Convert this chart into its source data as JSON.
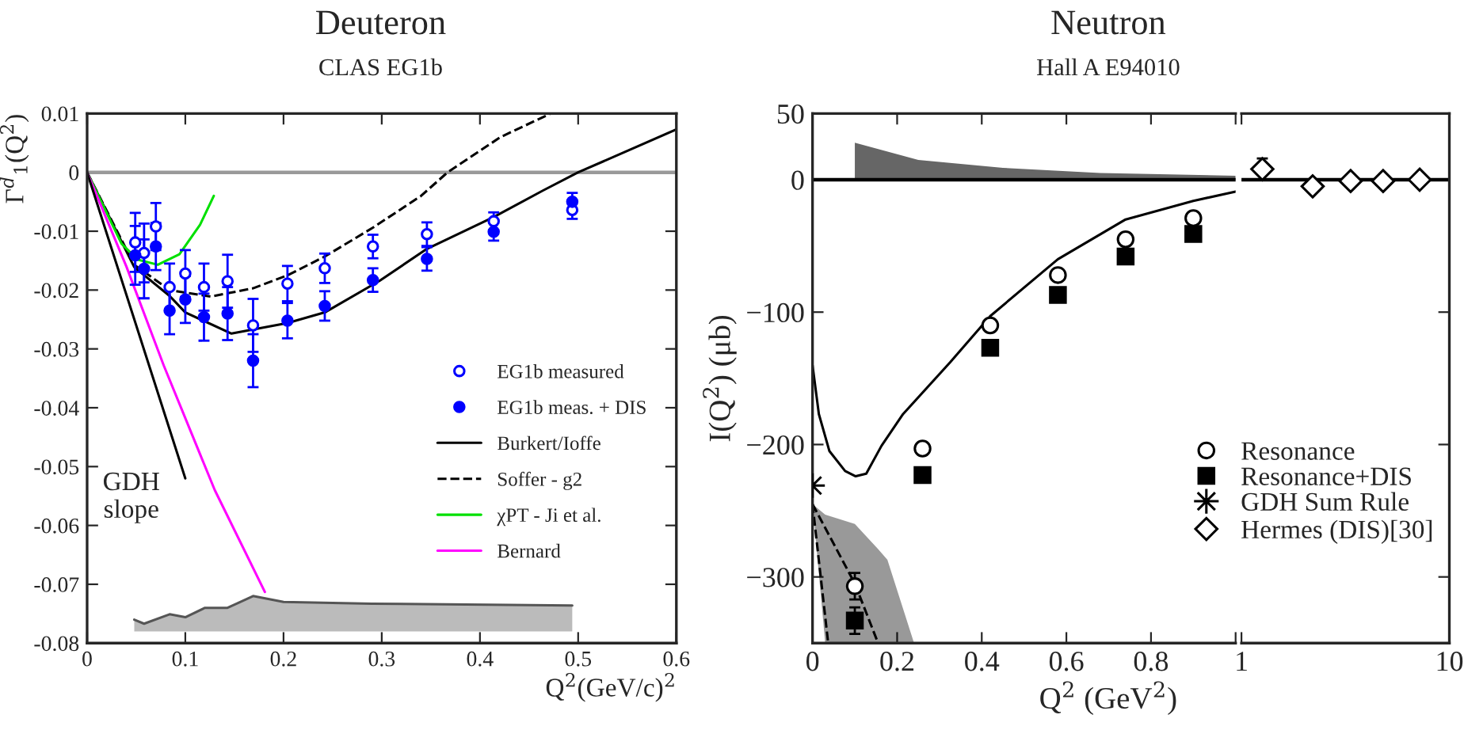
{
  "chart_data": [
    {
      "type": "scatter",
      "title": "Deuteron",
      "subtitle": "CLAS EG1b",
      "xlabel": "Q$^{2}$(GeV/c)$^{2}$",
      "ylabel": "Γ$^{d}$$_{1}$(Q$^{2}$)",
      "xlim": [
        0,
        0.6
      ],
      "xticks": [
        0,
        0.1,
        0.2,
        0.3,
        0.4,
        0.5,
        0.6
      ],
      "ylim": [
        -0.08,
        0.01
      ],
      "yticks": [
        -0.08,
        -0.07,
        -0.06,
        -0.05,
        -0.04,
        -0.03,
        -0.02,
        -0.01,
        0,
        0.01
      ],
      "legend": "bottom right",
      "grid": false,
      "ref_lines": [
        {
          "axis": "y",
          "value": 0,
          "color": "#999999"
        }
      ],
      "annotations": [
        "GDH\nslope"
      ],
      "series": [
        {
          "name": "EG1b measured",
          "color": "#0000ff",
          "marker": "circle-open",
          "x": [
            0.049,
            0.058,
            0.07,
            0.084,
            0.1,
            0.119,
            0.143,
            0.169,
            0.204,
            0.242,
            0.291,
            0.346,
            0.414,
            0.494
          ],
          "values": [
            -0.0119,
            -0.0137,
            -0.0092,
            -0.0195,
            -0.0172,
            -0.0195,
            -0.0185,
            -0.026,
            -0.0189,
            -0.0163,
            -0.0126,
            -0.0105,
            -0.0083,
            -0.0064
          ],
          "errors": [
            0.005,
            0.005,
            0.004,
            0.004,
            0.004,
            0.004,
            0.0045,
            0.0045,
            0.003,
            0.0025,
            0.002,
            0.002,
            0.0015,
            0.0015
          ]
        },
        {
          "name": "EG1b meas. + DIS",
          "color": "#0000ff",
          "marker": "circle",
          "x": [
            0.049,
            0.058,
            0.07,
            0.084,
            0.1,
            0.119,
            0.143,
            0.169,
            0.204,
            0.242,
            0.291,
            0.346,
            0.414,
            0.494
          ],
          "values": [
            -0.0141,
            -0.0164,
            -0.0126,
            -0.0235,
            -0.0216,
            -0.0246,
            -0.024,
            -0.032,
            -0.0252,
            -0.0227,
            -0.0183,
            -0.0147,
            -0.0101,
            -0.005
          ],
          "errors": [
            0.005,
            0.005,
            0.004,
            0.004,
            0.004,
            0.004,
            0.0045,
            0.0045,
            0.003,
            0.0025,
            0.002,
            0.002,
            0.0015,
            0.0015
          ]
        },
        {
          "name": "Burkert/Ioffe",
          "type": "line",
          "color": "#000000",
          "line_style": "solid",
          "x": [
            0,
            0.048,
            0.084,
            0.1,
            0.147,
            0.204,
            0.242,
            0.298,
            0.346,
            0.414,
            0.464,
            0.5,
            0.6
          ],
          "values": [
            0,
            -0.0161,
            -0.021,
            -0.0238,
            -0.0274,
            -0.0256,
            -0.0238,
            -0.0184,
            -0.013,
            -0.0076,
            -0.0031,
            0,
            0.0073
          ]
        },
        {
          "name": "Soffer - g2",
          "type": "line",
          "color": "#000000",
          "line_style": "dashed",
          "x": [
            0,
            0.048,
            0.084,
            0.126,
            0.169,
            0.204,
            0.242,
            0.291,
            0.34,
            0.367,
            0.421,
            0.472
          ],
          "values": [
            0,
            -0.0157,
            -0.02,
            -0.0211,
            -0.0197,
            -0.0175,
            -0.0143,
            -0.0094,
            -0.004,
            0,
            0.006,
            0.01
          ]
        },
        {
          "name": "χPT - Ji et al.",
          "type": "line",
          "color": "#00e000",
          "line_style": "solid",
          "x": [
            0,
            0.035,
            0.051,
            0.072,
            0.094,
            0.115,
            0.129
          ],
          "values": [
            0,
            -0.0121,
            -0.0148,
            -0.0157,
            -0.0139,
            -0.0089,
            -0.004
          ]
        },
        {
          "name": "Bernard",
          "type": "line",
          "color": "#ff00ff",
          "line_style": "solid",
          "x": [
            0,
            0.04,
            0.078,
            0.13,
            0.181
          ],
          "values": [
            0,
            -0.016,
            -0.0328,
            -0.054,
            -0.0713
          ]
        },
        {
          "type": "line",
          "color": "#000000",
          "line_style": "solid",
          "x": [
            0,
            0.1
          ],
          "values": [
            0,
            -0.052
          ]
        },
        {
          "type": "line",
          "color": "#555555",
          "line_style": "solid",
          "x": [
            0.048,
            0.058,
            0.084,
            0.1,
            0.12,
            0.143,
            0.169,
            0.2,
            0.29,
            0.494
          ],
          "values": [
            -0.076,
            -0.0767,
            -0.0751,
            -0.0756,
            -0.074,
            -0.074,
            -0.072,
            -0.073,
            -0.0733,
            -0.0736
          ],
          "upper": [
            -0.076,
            -0.0767,
            -0.0751,
            -0.0756,
            -0.074,
            -0.074,
            -0.072,
            -0.073,
            -0.0733,
            -0.0736
          ],
          "lower": [
            -0.078,
            -0.078,
            -0.078,
            -0.078,
            -0.078,
            -0.078,
            -0.078,
            -0.078,
            -0.078,
            -0.078
          ]
        }
      ]
    },
    {
      "type": "scatter",
      "title": "Neutron",
      "subtitle": "Hall A E94010",
      "xlabel": "Q$^{2}$ (GeV$^{2}$)",
      "ylabel": "I(Q$^{2}$) (μb)",
      "xlim": [
        0,
        1
      ],
      "xticks": [
        0,
        0.2,
        0.4,
        0.6,
        0.8,
        {
          "value": 1,
          "label": null
        }
      ],
      "ylim": [
        -350,
        50
      ],
      "yticks": [
        {
          "value": -300,
          "label": "−300"
        },
        {
          "value": -200,
          "label": "−200"
        },
        {
          "value": -100,
          "label": "−100"
        },
        0,
        50
      ],
      "legend": "bottom right",
      "grid": false,
      "ref_lines": [
        {
          "axis": "y",
          "value": 0,
          "color": "#000000"
        }
      ],
      "series": [
        {
          "type": "area",
          "color": "#666666",
          "x": [
            0.1,
            0.25,
            0.45,
            0.68,
            1.0
          ],
          "values": [
            28,
            15,
            9,
            5,
            3
          ]
        },
        {
          "type": "line",
          "color": "#000000",
          "line_style": "dashed",
          "x": [
            0,
            0.037
          ],
          "values": [
            -245,
            -350
          ]
        },
        {
          "type": "line",
          "color": "#000000",
          "line_style": "dashed",
          "x": [
            0,
            0.03,
            0.1,
            0.155,
            0.177,
            0.24
          ],
          "values": [
            -245,
            -263,
            -305,
            -350,
            null,
            null
          ],
          "upper": [
            -245,
            -253,
            -260,
            -279,
            -287,
            -350
          ],
          "lower": [
            -245,
            -350,
            -350,
            -350,
            -350,
            -350
          ]
        },
        {
          "type": "line",
          "color": "#000000",
          "line_style": "solid",
          "x": [
            0,
            0.015,
            0.04,
            0.077,
            0.102,
            0.127,
            0.163,
            0.214,
            0.325,
            0.42,
            0.58,
            0.74,
            0.9,
            1.0
          ],
          "values": [
            -140,
            -177,
            -205,
            -220,
            -224,
            -222,
            -201,
            -177,
            -138,
            -103,
            -60,
            -30,
            -16,
            -9
          ]
        },
        {
          "name": "Resonance",
          "color": "#000000",
          "marker": "circle-open",
          "x": [
            0.1,
            0.26,
            0.42,
            0.58,
            0.74,
            0.9
          ],
          "values": [
            -307,
            -203,
            -110,
            -72,
            -45,
            -29
          ],
          "errors": [
            10,
            null,
            null,
            null,
            null,
            null
          ]
        },
        {
          "name": "Resonance+DIS",
          "color": "#000000",
          "marker": "square",
          "x": [
            0.1,
            0.26,
            0.42,
            0.58,
            0.74,
            0.9
          ],
          "values": [
            -333,
            -223,
            -127,
            -87,
            -58,
            -41
          ],
          "errors": [
            10,
            null,
            null,
            null,
            null,
            null
          ]
        },
        {
          "name": "GDH Sum Rule",
          "color": "#000000",
          "marker": "cross",
          "x": [
            0
          ],
          "values": [
            -231
          ]
        }
      ]
    },
    {
      "type": "scatter",
      "log": "x",
      "xlim": [
        1,
        10
      ],
      "xticks": [
        1,
        10
      ],
      "ylim": [
        -350,
        50
      ],
      "tick_labels": "x",
      "legend": "bottom left",
      "grid": false,
      "ref_lines": [
        {
          "axis": "y",
          "value": 0,
          "color": "#000000"
        }
      ],
      "series": [
        {
          "name": "Hermes (DIS)[30]",
          "color": "#000000",
          "marker": "diamond-open",
          "x": [
            1.26,
            2.2,
            3.35,
            4.8,
            7.2
          ],
          "values": [
            8,
            -5,
            -1,
            -1,
            0
          ],
          "errors": [
            8,
            3,
            null,
            null,
            null
          ]
        }
      ]
    }
  ]
}
